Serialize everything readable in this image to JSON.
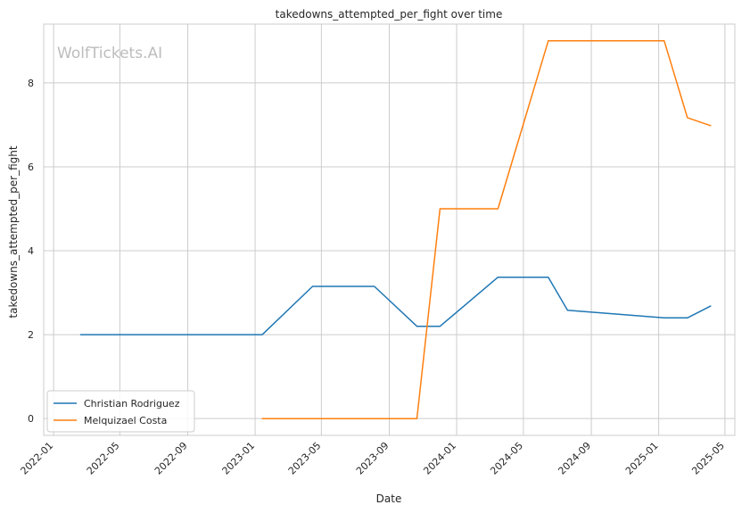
{
  "chart_data": {
    "type": "line",
    "title": "takedowns_attempted_per_fight over time",
    "xlabel": "Date",
    "ylabel": "takedowns_attempted_per_fight",
    "watermark": "WolfTickets.AI",
    "x_ticks": [
      "2022-01",
      "2022-05",
      "2022-09",
      "2023-01",
      "2023-05",
      "2023-09",
      "2024-01",
      "2024-05",
      "2024-09",
      "2025-01",
      "2025-05"
    ],
    "y_ticks": [
      "0",
      "2",
      "4",
      "6",
      "8"
    ],
    "xlim": [
      "2021-12-14",
      "2025-05-19"
    ],
    "ylim": [
      -0.4,
      9.4
    ],
    "grid": true,
    "legend_position": "bottom-left",
    "series": [
      {
        "name": "Christian Rodriguez",
        "color": "#1f77b4",
        "points": [
          {
            "x": "2022-02-19",
            "y": 2.0
          },
          {
            "x": "2023-01-14",
            "y": 2.0
          },
          {
            "x": "2023-04-15",
            "y": 3.15
          },
          {
            "x": "2023-08-05",
            "y": 3.15
          },
          {
            "x": "2023-10-21",
            "y": 2.2
          },
          {
            "x": "2023-12-02",
            "y": 2.2
          },
          {
            "x": "2024-03-16",
            "y": 3.37
          },
          {
            "x": "2024-06-15",
            "y": 3.37
          },
          {
            "x": "2024-07-20",
            "y": 2.58
          },
          {
            "x": "2025-01-11",
            "y": 2.4
          },
          {
            "x": "2025-02-22",
            "y": 2.4
          },
          {
            "x": "2025-04-05",
            "y": 2.68
          }
        ]
      },
      {
        "name": "Melquizael Costa",
        "color": "#ff7f0e",
        "points": [
          {
            "x": "2023-01-14",
            "y": 0.0
          },
          {
            "x": "2023-10-21",
            "y": 0.0
          },
          {
            "x": "2023-12-02",
            "y": 5.0
          },
          {
            "x": "2024-03-16",
            "y": 5.0
          },
          {
            "x": "2024-06-15",
            "y": 9.0
          },
          {
            "x": "2025-01-11",
            "y": 9.0
          },
          {
            "x": "2025-02-22",
            "y": 7.17
          },
          {
            "x": "2025-04-05",
            "y": 6.98
          }
        ]
      }
    ]
  }
}
